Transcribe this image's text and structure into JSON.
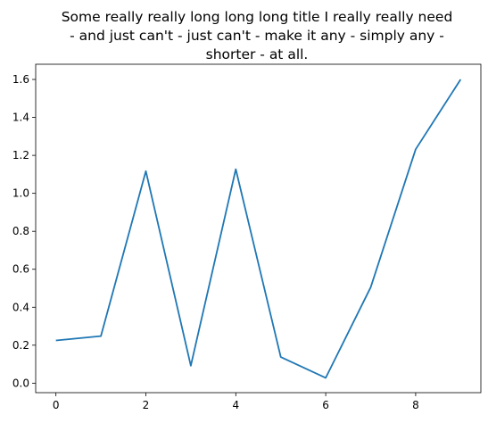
{
  "chart_data": {
    "type": "line",
    "title_lines": [
      "Some really really long long long title I really really need",
      "- and just can't - just can't - make it any - simply any -",
      "shorter - at all."
    ],
    "x": [
      0,
      1,
      2,
      3,
      4,
      5,
      6,
      7,
      8,
      9
    ],
    "series": [
      {
        "values": [
          0.225,
          0.248,
          1.117,
          0.092,
          1.127,
          0.138,
          0.028,
          0.505,
          1.232,
          1.6
        ],
        "color": "#1f77b4"
      }
    ],
    "xlim": [
      -0.45,
      9.45
    ],
    "ylim": [
      -0.05,
      1.68
    ],
    "xticks": [
      0,
      2,
      4,
      6,
      8
    ],
    "yticks": [
      0.0,
      0.2,
      0.4,
      0.6,
      0.8,
      1.0,
      1.2,
      1.4,
      1.6
    ],
    "xtick_labels": [
      "0",
      "2",
      "4",
      "6",
      "8"
    ],
    "ytick_labels": [
      "0.0",
      "0.2",
      "0.4",
      "0.6",
      "0.8",
      "1.0",
      "1.2",
      "1.4",
      "1.6"
    ],
    "grid": false
  }
}
